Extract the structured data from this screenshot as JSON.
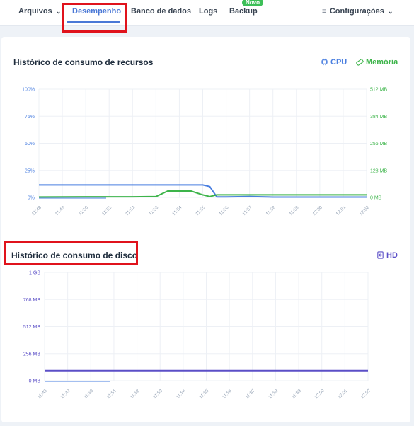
{
  "nav": {
    "arquivos": "Arquivos",
    "desempenho": "Desempenho",
    "banco": "Banco de dados",
    "logs": "Logs",
    "backup": "Backup",
    "backup_badge": "Novo",
    "config": "Configurações"
  },
  "resources": {
    "title": "Histórico de consumo de recursos",
    "legend_cpu": "CPU",
    "legend_mem": "Memória"
  },
  "disk": {
    "title": "Histórico de consumo de disco",
    "legend_hd": "HD"
  },
  "colors": {
    "cpu": "#4a7fe0",
    "memory": "#3db44a",
    "hd": "#5b4fc7",
    "highlight": "#e0131c"
  },
  "chart_data": [
    {
      "type": "line",
      "x": [
        "11:48",
        "11:49",
        "11:50",
        "11:51",
        "11:52",
        "11:53",
        "11:54",
        "11:55",
        "11:56",
        "11:57",
        "11:58",
        "11:59",
        "12:00",
        "12:01",
        "12:02"
      ],
      "y_left_ticks": [
        "0%",
        "25%",
        "50%",
        "75%",
        "100%"
      ],
      "y_right_ticks": [
        "0 MB",
        "128 MB",
        "256 MB",
        "384 MB",
        "512 MB"
      ],
      "ylim_left": [
        0,
        100
      ],
      "ylim_right": [
        0,
        512
      ],
      "grid": true,
      "series": [
        {
          "name": "CPU",
          "axis": "left",
          "color": "#4a7fe0",
          "points": [
            [
              "11:48",
              11.5
            ],
            [
              "11:49",
              11.5
            ],
            [
              "11:50",
              11.5
            ],
            [
              "11:51",
              11.5
            ],
            [
              "11:52",
              11.5
            ],
            [
              "11:53",
              11.5
            ],
            [
              "11:54",
              11.5
            ],
            [
              "11:55",
              11.5
            ],
            [
              "11:55.3",
              10
            ],
            [
              "11:55.6",
              0.5
            ],
            [
              "11:56",
              0.5
            ],
            [
              "11:57",
              0.8
            ],
            [
              "11:58",
              0.3
            ],
            [
              "11:59",
              0.3
            ],
            [
              "12:00",
              0.3
            ],
            [
              "12:01",
              0.3
            ],
            [
              "12:02",
              0.3
            ]
          ]
        },
        {
          "name": "Memória",
          "axis": "right",
          "color": "#3db44a",
          "points": [
            [
              "11:48",
              2
            ],
            [
              "11:49",
              2.5
            ],
            [
              "11:50",
              3
            ],
            [
              "11:51",
              3
            ],
            [
              "11:52",
              3
            ],
            [
              "11:53",
              4
            ],
            [
              "11:53.5",
              30
            ],
            [
              "11:54",
              30
            ],
            [
              "11:54.5",
              30
            ],
            [
              "11:55",
              12
            ],
            [
              "11:55.3",
              4
            ],
            [
              "11:55.6",
              12
            ],
            [
              "11:56",
              12
            ],
            [
              "11:57",
              12
            ],
            [
              "11:58",
              12
            ],
            [
              "11:59",
              12
            ],
            [
              "12:00",
              12
            ],
            [
              "12:01",
              12
            ],
            [
              "12:02",
              12
            ]
          ]
        }
      ]
    },
    {
      "type": "line",
      "x": [
        "11:48",
        "11:49",
        "11:50",
        "11:51",
        "11:52",
        "11:53",
        "11:54",
        "11:55",
        "11:56",
        "11:57",
        "11:58",
        "11:59",
        "12:00",
        "12:01",
        "12:02"
      ],
      "y_ticks": [
        "0 MB",
        "256 MB",
        "512 MB",
        "768 MB",
        "1 GB"
      ],
      "ylim_mb": [
        0,
        1024
      ],
      "grid": true,
      "series": [
        {
          "name": "HD",
          "color": "#5b4fc7",
          "points": [
            [
              "11:48",
              95
            ],
            [
              "12:02",
              95
            ]
          ]
        }
      ]
    }
  ]
}
